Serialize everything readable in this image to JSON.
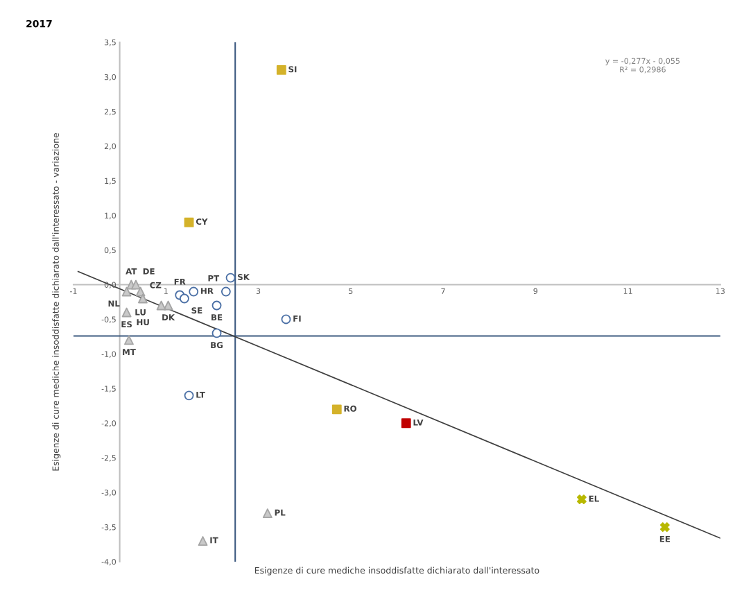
{
  "chart_data": {
    "type": "scatter",
    "title": "2017",
    "xlabel": "Esigenze di cure mediche insoddisfatte dichiarato dall'interessato",
    "ylabel": "Esigenze di cure mediche insoddisfatte dichiarato dall'interessato - variazione",
    "xlim": [
      -1,
      13
    ],
    "xticks": [
      -1,
      1,
      3,
      5,
      7,
      9,
      11,
      13
    ],
    "ylim": [
      -4,
      3.5
    ],
    "yticks": [
      {
        "value": -4,
        "label": "-4,0"
      },
      {
        "value": -3.5,
        "label": "-3,5"
      },
      {
        "value": -3,
        "label": "-3,0"
      },
      {
        "value": -2.5,
        "label": "-2,5"
      },
      {
        "value": -2,
        "label": "-2,0"
      },
      {
        "value": -1.5,
        "label": "-1,5"
      },
      {
        "value": -1,
        "label": "-1,0"
      },
      {
        "value": -0.5,
        "label": "-0,5"
      },
      {
        "value": 0,
        "label": "0,0"
      },
      {
        "value": 0.5,
        "label": "0,5"
      },
      {
        "value": 1,
        "label": "1,0"
      },
      {
        "value": 1.5,
        "label": "1,5"
      },
      {
        "value": 2,
        "label": "2,0"
      },
      {
        "value": 2.5,
        "label": "2,5"
      },
      {
        "value": 3,
        "label": "3,0"
      },
      {
        "value": 3.5,
        "label": "3,5"
      }
    ],
    "grid": false,
    "series": [
      {
        "marker": "triangle",
        "color": "#a5a5a5",
        "x": [
          0.25,
          0.35,
          0.45,
          0.15,
          0.5,
          1.05,
          0.9,
          0.15,
          0.2,
          3.2,
          1.8
        ],
        "values": [
          0.0,
          0.0,
          -0.1,
          -0.1,
          -0.2,
          -0.3,
          -0.3,
          -0.4,
          -0.8,
          -3.3,
          -3.7
        ]
      },
      {
        "marker": "circle",
        "color": "#4a6fa5",
        "x": [
          1.3,
          1.4,
          1.6,
          2.3,
          2.4,
          2.1,
          3.6,
          2.1,
          1.5
        ],
        "values": [
          -0.15,
          -0.2,
          -0.1,
          -0.1,
          0.1,
          -0.3,
          -0.5,
          -0.7,
          -1.6
        ]
      },
      {
        "marker": "square",
        "color": "#d4b22a",
        "x": [
          3.5,
          1.5,
          4.7
        ],
        "values": [
          3.1,
          0.9,
          -1.8
        ]
      },
      {
        "marker": "square",
        "color": "#c00000",
        "x": [
          6.2
        ],
        "values": [
          -2.0
        ]
      },
      {
        "marker": "cross",
        "color": "#b8b800",
        "x": [
          10.0,
          11.8
        ],
        "values": [
          -3.1,
          -3.5
        ]
      },
      {
        "type": "line",
        "color": "#404040",
        "x": [
          -0.9,
          13
        ],
        "values": [
          0.19,
          -3.66
        ]
      }
    ],
    "ref_lines": [
      {
        "axis": "x",
        "value": 2.5,
        "color": "#3d5a80"
      },
      {
        "axis": "y",
        "value": -0.74,
        "color": "#3d5a80"
      }
    ],
    "annotations": [
      {
        "text": "AT",
        "x": 0.25,
        "y": 0.0
      },
      {
        "text": "DE",
        "x": 0.35,
        "y": 0.0
      },
      {
        "text": "LU",
        "x": 0.45,
        "y": -0.1
      },
      {
        "text": "NL",
        "x": 0.15,
        "y": -0.1
      },
      {
        "text": "CZ",
        "x": 0.5,
        "y": -0.2
      },
      {
        "text": "DK",
        "x": 1.05,
        "y": -0.3
      },
      {
        "text": "HU",
        "x": 0.9,
        "y": -0.3
      },
      {
        "text": "ES",
        "x": 0.15,
        "y": -0.4
      },
      {
        "text": "MT",
        "x": 0.2,
        "y": -0.8
      },
      {
        "text": "PL",
        "x": 3.2,
        "y": -3.3
      },
      {
        "text": "IT",
        "x": 1.8,
        "y": -3.7
      },
      {
        "text": "FR",
        "x": 1.3,
        "y": -0.15
      },
      {
        "text": "SE",
        "x": 1.4,
        "y": -0.2
      },
      {
        "text": "HR",
        "x": 1.6,
        "y": -0.1
      },
      {
        "text": "PT",
        "x": 2.3,
        "y": -0.1
      },
      {
        "text": "SK",
        "x": 2.4,
        "y": 0.1
      },
      {
        "text": "BE",
        "x": 2.1,
        "y": -0.3
      },
      {
        "text": "FI",
        "x": 3.6,
        "y": -0.5
      },
      {
        "text": "BG",
        "x": 2.1,
        "y": -0.7
      },
      {
        "text": "LT",
        "x": 1.5,
        "y": -1.6
      },
      {
        "text": "SI",
        "x": 3.5,
        "y": 3.1
      },
      {
        "text": "CY",
        "x": 1.5,
        "y": 0.9
      },
      {
        "text": "RO",
        "x": 4.7,
        "y": -1.8
      },
      {
        "text": "LV",
        "x": 6.2,
        "y": -2.0
      },
      {
        "text": "EL",
        "x": 10.0,
        "y": -3.1
      },
      {
        "text": "EE",
        "x": 11.8,
        "y": -3.5
      },
      "y = -0,277x - 0,055\nR² = 0,2986"
    ]
  }
}
